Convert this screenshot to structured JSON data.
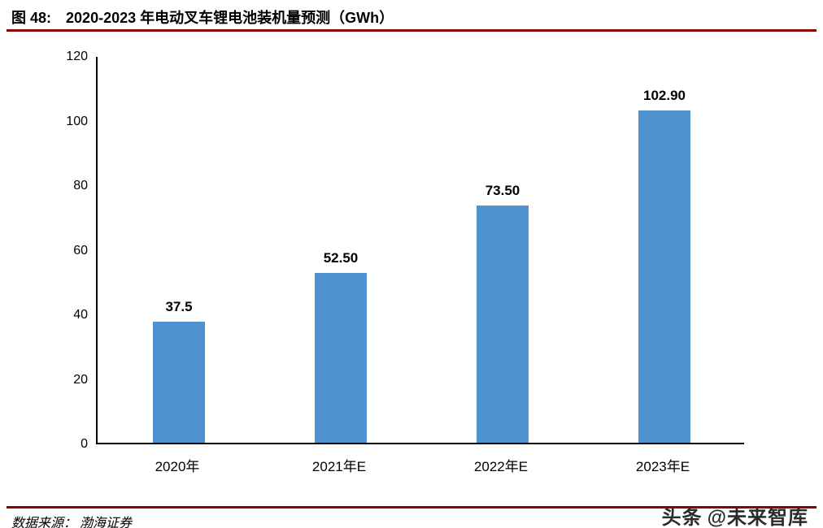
{
  "header": {
    "figure_label": "图 48:",
    "title": "2020-2023 年电动叉车锂电池装机量预测（GWh）"
  },
  "chart_data": {
    "type": "bar",
    "title": "2020-2023 年电动叉车锂电池装机量预测（GWh）",
    "categories": [
      "2020年",
      "2021年E",
      "2022年E",
      "2023年E"
    ],
    "values": [
      37.5,
      52.5,
      73.5,
      102.9
    ],
    "value_labels": [
      "37.5",
      "52.50",
      "73.50",
      "102.90"
    ],
    "xlabel": "",
    "ylabel": "",
    "ylim": [
      0,
      120
    ],
    "yticks": [
      0,
      20,
      40,
      60,
      80,
      100,
      120
    ],
    "bar_color": "#4F93CE",
    "grid": false,
    "legend": false
  },
  "footer": {
    "source": "数据来源： 渤海证券",
    "watermark_brand": "头条",
    "watermark": "@未来智库"
  },
  "colors": {
    "accent_rule": "#8B0000",
    "bar": "#4F93CE",
    "axis": "#000000"
  }
}
